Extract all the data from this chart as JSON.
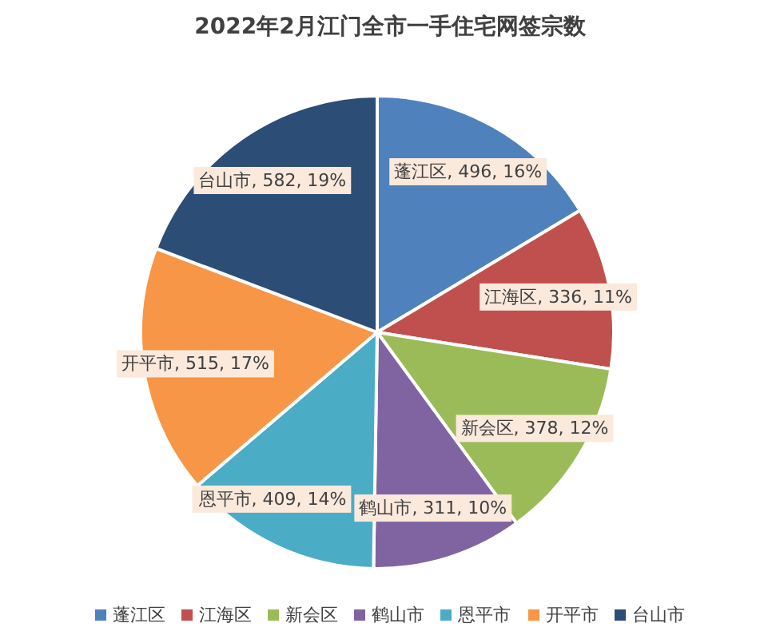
{
  "chart_data": {
    "type": "pie",
    "title": "2022年2月江门全市一手住宅网签宗数",
    "categories": [
      "蓬江区",
      "江海区",
      "新会区",
      "鹤山市",
      "恩平市",
      "开平市",
      "台山市"
    ],
    "values": [
      496,
      336,
      378,
      311,
      409,
      515,
      582
    ],
    "colors": [
      "#4f81bd",
      "#c0504d",
      "#9bbb59",
      "#8064a2",
      "#4bacc6",
      "#f79646",
      "#2c4d75"
    ],
    "value_labels": [
      "蓬江区, 496, 16%",
      "江海区, 336, 11%",
      "新会区, 378, 12%",
      "鹤山市, 311, 10%",
      "恩平市, 409, 14%",
      "开平市, 515, 17%",
      "台山市, 582, 19%"
    ],
    "legend": "bottom"
  }
}
